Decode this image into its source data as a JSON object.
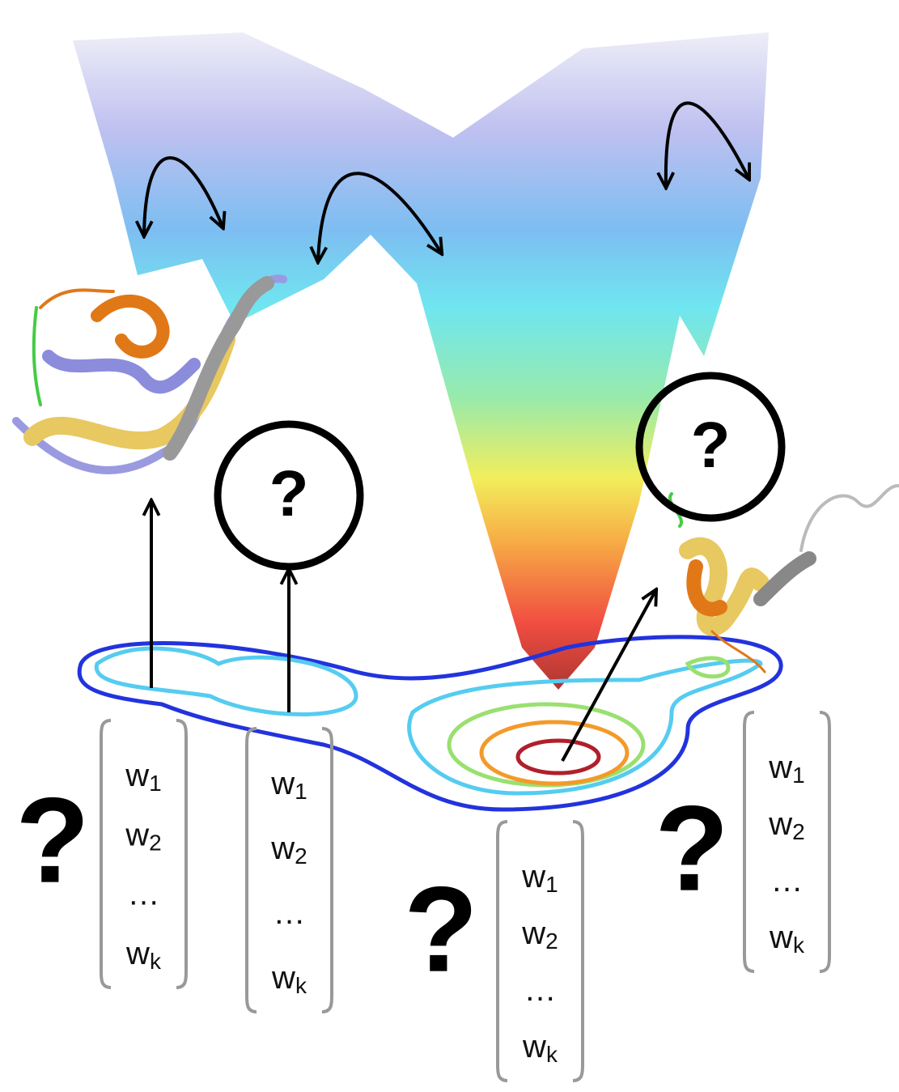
{
  "circles": [
    {
      "label": "?"
    },
    {
      "label": "?"
    }
  ],
  "question_marks": [
    "?",
    "?",
    "?"
  ],
  "vectors": [
    {
      "entries": [
        {
          "base": "w",
          "sub": "1"
        },
        {
          "base": "w",
          "sub": "2"
        },
        {
          "base": "…"
        },
        {
          "base": "w",
          "sub": "k"
        }
      ]
    },
    {
      "entries": [
        {
          "base": "w",
          "sub": "1"
        },
        {
          "base": "w",
          "sub": "2"
        },
        {
          "base": "…"
        },
        {
          "base": "w",
          "sub": "k"
        }
      ]
    },
    {
      "entries": [
        {
          "base": "w",
          "sub": "1"
        },
        {
          "base": "w",
          "sub": "2"
        },
        {
          "base": "…"
        },
        {
          "base": "w",
          "sub": "k"
        }
      ]
    },
    {
      "entries": [
        {
          "base": "w",
          "sub": "1"
        },
        {
          "base": "w",
          "sub": "2"
        },
        {
          "base": "…"
        },
        {
          "base": "w",
          "sub": "k"
        }
      ]
    }
  ]
}
